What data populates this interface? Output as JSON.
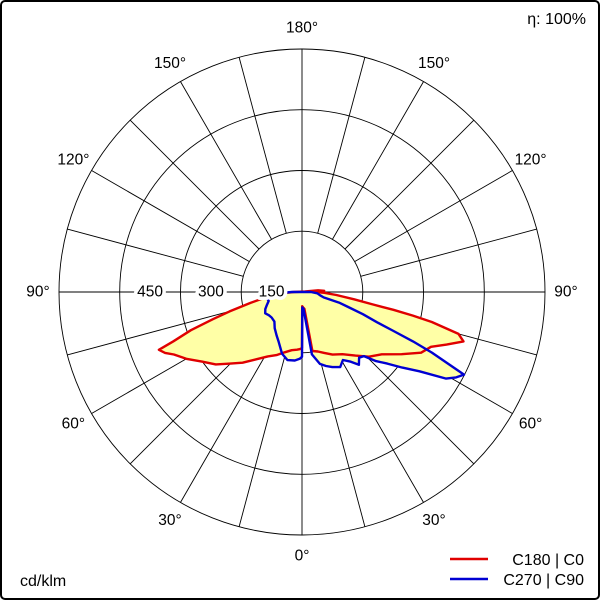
{
  "page": {
    "background": "#ffffff",
    "border_color": "#000000"
  },
  "chart_data": {
    "type": "polar",
    "subtype": "luminous-intensity-distribution",
    "units_label": "cd/klm",
    "efficiency_label": "η: 100%",
    "radial_max": 600,
    "angle_step_deg": 15,
    "ring_values": [
      150,
      300,
      450,
      600
    ],
    "radial_ticks": [
      {
        "label": "450",
        "value": 450
      },
      {
        "label": "300",
        "value": 300
      },
      {
        "label": "150",
        "value": 150
      }
    ],
    "angle_labels": [
      {
        "text": "180°",
        "deg": 180,
        "dir": 0
      },
      {
        "text": "150°",
        "deg": 150,
        "dir": -1
      },
      {
        "text": "150°",
        "deg": 150,
        "dir": 1
      },
      {
        "text": "120°",
        "deg": 120,
        "dir": -1
      },
      {
        "text": "120°",
        "deg": 120,
        "dir": 1
      },
      {
        "text": "90°",
        "deg": 90,
        "dir": -1
      },
      {
        "text": "90°",
        "deg": 90,
        "dir": 1
      },
      {
        "text": "60°",
        "deg": 60,
        "dir": -1
      },
      {
        "text": "60°",
        "deg": 60,
        "dir": 1
      },
      {
        "text": "30°",
        "deg": 30,
        "dir": -1
      },
      {
        "text": "30°",
        "deg": 30,
        "dir": 1
      },
      {
        "text": "0°",
        "deg": 0,
        "dir": 0
      }
    ],
    "fill_color": "#ffffa6",
    "legend_position": "bottom-right",
    "series": [
      {
        "id": "c180-c0",
        "name": "C180 | C0",
        "color": "#e00000",
        "points": [
          [
            -90,
            20
          ],
          [
            -87,
            45
          ],
          [
            -84,
            70
          ],
          [
            -81,
            95
          ],
          [
            -78,
            130
          ],
          [
            -75,
            185
          ],
          [
            -73,
            230
          ],
          [
            -71,
            290
          ],
          [
            -69,
            340
          ],
          [
            -68,
            381
          ],
          [
            -66,
            370
          ],
          [
            -64,
            352
          ],
          [
            -60,
            330
          ],
          [
            -55,
            300
          ],
          [
            -50,
            278
          ],
          [
            -45,
            250
          ],
          [
            -40,
            228
          ],
          [
            -34,
            200
          ],
          [
            -28,
            180
          ],
          [
            -22,
            168
          ],
          [
            -16,
            155
          ],
          [
            -10,
            146
          ],
          [
            -5,
            143
          ],
          [
            -2,
            141
          ],
          [
            0,
            138
          ],
          [
            1,
            35
          ],
          [
            4,
            38
          ],
          [
            8,
            42
          ],
          [
            10,
            148
          ],
          [
            15,
            152
          ],
          [
            20,
            160
          ],
          [
            26,
            172
          ],
          [
            33,
            183
          ],
          [
            40,
            205
          ],
          [
            46,
            230
          ],
          [
            52,
            250
          ],
          [
            58,
            290
          ],
          [
            63,
            330
          ],
          [
            67,
            346
          ],
          [
            70,
            380
          ],
          [
            73,
            417
          ],
          [
            75,
            400
          ],
          [
            77,
            329
          ],
          [
            78,
            280
          ],
          [
            79,
            230
          ],
          [
            80,
            177
          ],
          [
            82,
            130
          ],
          [
            85,
            85
          ],
          [
            88,
            55
          ],
          [
            90,
            35
          ],
          [
            93,
            55
          ],
          [
            96,
            40
          ],
          [
            99,
            8
          ]
        ]
      },
      {
        "id": "c270-c90",
        "name": "C270 | C90",
        "color": "#0000d2",
        "points": [
          [
            -90,
            25
          ],
          [
            -87,
            60
          ],
          [
            -85,
            95
          ],
          [
            -80,
            88
          ],
          [
            -75,
            85
          ],
          [
            -70,
            92
          ],
          [
            -65,
            100
          ],
          [
            -60,
            105
          ],
          [
            -55,
            100
          ],
          [
            -50,
            98
          ],
          [
            -43,
            100
          ],
          [
            -37,
            112
          ],
          [
            -30,
            125
          ],
          [
            -25,
            136
          ],
          [
            -18,
            160
          ],
          [
            -12,
            172
          ],
          [
            -6,
            170
          ],
          [
            -2,
            165
          ],
          [
            0,
            160
          ],
          [
            1,
            38
          ],
          [
            5,
            42
          ],
          [
            9,
            156
          ],
          [
            14,
            183
          ],
          [
            18,
            192
          ],
          [
            22,
            200
          ],
          [
            27,
            208
          ],
          [
            31,
            196
          ],
          [
            35,
            210
          ],
          [
            38,
            228
          ],
          [
            41,
            215
          ],
          [
            44,
            220
          ],
          [
            47,
            250
          ],
          [
            50,
            275
          ],
          [
            53,
            310
          ],
          [
            56,
            350
          ],
          [
            59,
            415
          ],
          [
            61,
            435
          ],
          [
            63,
            449
          ],
          [
            65,
            354
          ],
          [
            66,
            300
          ],
          [
            67,
            243
          ],
          [
            68,
            200
          ],
          [
            70,
            160
          ],
          [
            72,
            120
          ],
          [
            74,
            95
          ],
          [
            76,
            55
          ],
          [
            80,
            45
          ],
          [
            85,
            38
          ],
          [
            90,
            22
          ]
        ]
      }
    ]
  }
}
